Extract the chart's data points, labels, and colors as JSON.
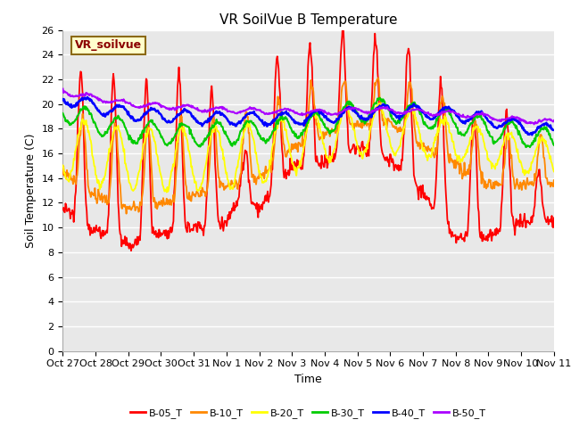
{
  "title": "VR SoilVue B Temperature",
  "xlabel": "Time",
  "ylabel": "Soil Temperature (C)",
  "ylim": [
    0,
    26
  ],
  "yticks": [
    0,
    2,
    4,
    6,
    8,
    10,
    12,
    14,
    16,
    18,
    20,
    22,
    24,
    26
  ],
  "xtick_labels": [
    "Oct 27",
    "Oct 28",
    "Oct 29",
    "Oct 30",
    "Oct 31",
    "Nov 1",
    "Nov 2",
    "Nov 3",
    "Nov 4",
    "Nov 5",
    "Nov 6",
    "Nov 7",
    "Nov 8",
    "Nov 9",
    "Nov 10",
    "Nov 11"
  ],
  "legend_label": "VR_soilvue",
  "series_names": [
    "B-05_T",
    "B-10_T",
    "B-20_T",
    "B-30_T",
    "B-40_T",
    "B-50_T"
  ],
  "series_colors": [
    "#ff0000",
    "#ff8800",
    "#ffff00",
    "#00cc00",
    "#0000ff",
    "#aa00ff"
  ],
  "plot_bg_color": "#e8e8e8",
  "grid_color": "#ffffff",
  "title_fontsize": 11,
  "axis_fontsize": 9,
  "tick_fontsize": 8
}
